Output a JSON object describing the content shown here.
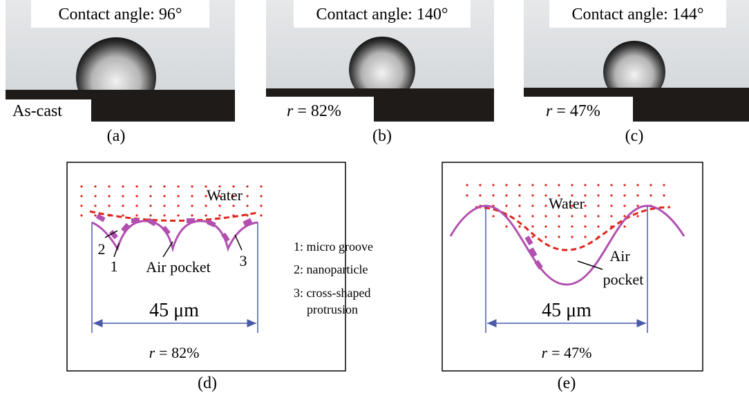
{
  "photos": [
    {
      "caption": "Contact angle: 96°",
      "sample": {
        "text": "As-cast"
      },
      "label": "(a)"
    },
    {
      "caption": "Contact angle: 140°",
      "sample": {
        "variable": "r",
        "value": "= 82%"
      },
      "label": "(b)"
    },
    {
      "caption": "Contact angle: 144°",
      "sample": {
        "variable": "r",
        "value": "= 47%"
      },
      "label": "(c)"
    }
  ],
  "diagrams": [
    {
      "water": "Water",
      "markers": [
        "2",
        "1",
        "3"
      ],
      "air_pocket": [
        "Air pocket"
      ],
      "width": "45 μm",
      "roughness": {
        "variable": "r",
        "value": "= 82%"
      },
      "label": "(d)",
      "legend": [
        [
          "1: micro groove"
        ],
        [
          "2: nanoparticle"
        ],
        [
          "3: cross-shaped",
          "protrusion"
        ]
      ]
    },
    {
      "water": "Water",
      "air_pocket": [
        "Air",
        "pocket"
      ],
      "width": "45 μm",
      "roughness": {
        "variable": "r",
        "value": "= 47%"
      },
      "label": "(e)"
    }
  ]
}
